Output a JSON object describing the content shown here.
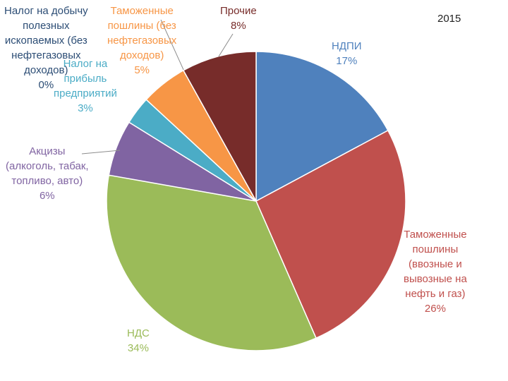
{
  "chart_data": {
    "type": "pie",
    "title": "",
    "year": "2015",
    "slices": [
      {
        "name": "НДПИ",
        "value": 17,
        "label": "17%",
        "color": "#4F81BD",
        "text_color": "#4F81BD",
        "lines": [
          "НДПИ"
        ]
      },
      {
        "name": "Таможенные пошлины (ввозные и вывозные на нефть и газ)",
        "value": 26,
        "label": "26%",
        "color": "#C0504D",
        "text_color": "#C0504D",
        "lines": [
          "Таможенные",
          "пошлины",
          "(ввозные и",
          "вывозные на",
          "нефть и газ)"
        ]
      },
      {
        "name": "НДС",
        "value": 34,
        "label": "34%",
        "color": "#9BBB59",
        "text_color": "#9BBB59",
        "lines": [
          "НДС"
        ]
      },
      {
        "name": "Акцизы (алкоголь, табак, топливо, авто)",
        "value": 6,
        "label": "6%",
        "color": "#8064A2",
        "text_color": "#8064A2",
        "lines": [
          "Акцизы",
          "(алкоголь, табак,",
          "топливо, авто)"
        ]
      },
      {
        "name": "Налог на прибыль предприятий",
        "value": 3,
        "label": "3%",
        "color": "#4BACC6",
        "text_color": "#4BACC6",
        "lines": [
          "Налог на",
          "прибыль",
          "предприятий"
        ]
      },
      {
        "name": "Таможенные пошлины (без нефтегазовых доходов)",
        "value": 5,
        "label": "5%",
        "color": "#F79646",
        "text_color": "#F79646",
        "lines": [
          "Таможенные",
          "пошлины (без",
          "нефтегазовых",
          "доходов)"
        ]
      },
      {
        "name": "Налог на добычу полезных ископаемых (без нефтегазовых доходов)",
        "value": 0,
        "label": "0%",
        "color": "#2C4D75",
        "text_color": "#2C4D75",
        "lines": [
          "Налог на добычу",
          "полезных",
          "ископаемых (без",
          "нефтегазовых",
          "доходов)"
        ]
      },
      {
        "name": "Прочие",
        "value": 8,
        "label": "8%",
        "color": "#772C2A",
        "text_color": "#772C2A",
        "lines": [
          "Прочие"
        ]
      }
    ]
  }
}
